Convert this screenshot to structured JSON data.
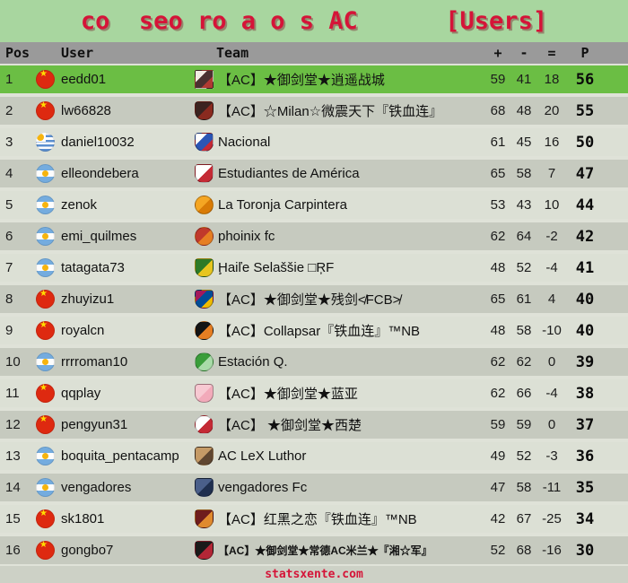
{
  "banner": {
    "title": "co  seo ro a o s AC      [Users]",
    "background": "#A8D69F",
    "title_color": "#D51438"
  },
  "columns": {
    "pos": "Pos",
    "user": "User",
    "team": "Team",
    "plus": "+",
    "minus": "-",
    "equal": "=",
    "points": "P"
  },
  "colors": {
    "header_row": "#9A9A9A",
    "row_light": "#DCE0D5",
    "row_dark": "#C6CABF",
    "row_highlight": "#6BBE44",
    "accent_red": "#D51438"
  },
  "rows": [
    {
      "pos": 1,
      "flag": "china",
      "user": "eedd01",
      "badge": {
        "name": "anime-girl-crest-icon",
        "shape": "square",
        "colors": [
          "#F2ECE3",
          "#4A3030",
          "#B03A32"
        ]
      },
      "team": "【AC】★御剑堂★逍遥战城",
      "plus": 59,
      "minus": 41,
      "equal": 18,
      "points": 56,
      "highlight": true
    },
    {
      "pos": 2,
      "flag": "china",
      "user": "lw66828",
      "badge": {
        "name": "milan-owl-crest-icon",
        "shape": "shield",
        "colors": [
          "#3B2320",
          "#8A2A1F"
        ]
      },
      "team": "【AC】☆Milan☆微震天下『铁血连』",
      "plus": 68,
      "minus": 48,
      "equal": 20,
      "points": 55
    },
    {
      "pos": 3,
      "flag": "uruguay",
      "user": "daniel10032",
      "badge": {
        "name": "nacional-crest-icon",
        "shape": "shield",
        "colors": [
          "#FFFFFF",
          "#2B55B4",
          "#C42A35"
        ]
      },
      "team": "Nacional",
      "plus": 61,
      "minus": 45,
      "equal": 16,
      "points": 50
    },
    {
      "pos": 4,
      "flag": "argentina",
      "user": "elleondebera",
      "badge": {
        "name": "estudiantes-crest-icon",
        "shape": "shield",
        "colors": [
          "#FFFFFF",
          "#C42A35"
        ]
      },
      "team": "Estudiantes de América",
      "plus": 65,
      "minus": 58,
      "equal": 7,
      "points": 47
    },
    {
      "pos": 5,
      "flag": "argentina",
      "user": "zenok",
      "badge": {
        "name": "orange-ball-crest-icon",
        "shape": "circle",
        "colors": [
          "#F5A623",
          "#D97B06"
        ]
      },
      "team": "La Toronja Carpintera",
      "plus": 53,
      "minus": 43,
      "equal": 10,
      "points": 44
    },
    {
      "pos": 6,
      "flag": "argentina",
      "user": "emi_quilmes",
      "badge": {
        "name": "phoenix-bird-crest-icon",
        "shape": "circle",
        "colors": [
          "#C0392B",
          "#E67E22"
        ]
      },
      "team": "phoinix fc",
      "plus": 62,
      "minus": 64,
      "equal": -2,
      "points": 42
    },
    {
      "pos": 7,
      "flag": "argentina",
      "user": "tatagata73",
      "badge": {
        "name": "green-yellow-crest-icon",
        "shape": "shield",
        "colors": [
          "#2D7A27",
          "#E7C51F"
        ]
      },
      "team": "Ḩaiľe Selaššie □ŖF",
      "plus": 48,
      "minus": 52,
      "equal": -4,
      "points": 41
    },
    {
      "pos": 8,
      "flag": "china",
      "user": "zhuyizu1",
      "badge": {
        "name": "fcb-crest-icon",
        "shape": "shield",
        "colors": [
          "#A3195B",
          "#004D98",
          "#EDBB00"
        ]
      },
      "team": "【AC】★御剑堂★残剑≮FCB≯",
      "plus": 65,
      "minus": 61,
      "equal": 4,
      "points": 40
    },
    {
      "pos": 9,
      "flag": "china",
      "user": "royalcn",
      "badge": {
        "name": "black-orange-orb-icon",
        "shape": "circle",
        "colors": [
          "#141414",
          "#E67E22"
        ]
      },
      "team": "【AC】Collapsar『铁血连』™NB",
      "plus": 48,
      "minus": 58,
      "equal": -10,
      "points": 40
    },
    {
      "pos": 10,
      "flag": "argentina",
      "user": "rrrroman10",
      "badge": {
        "name": "green-circle-crest-icon",
        "shape": "circle",
        "colors": [
          "#3A9D3A",
          "#A8DBA8"
        ]
      },
      "team": "Estación Q.",
      "plus": 62,
      "minus": 62,
      "equal": 0,
      "points": 39
    },
    {
      "pos": 11,
      "flag": "china",
      "user": "qqplay",
      "badge": {
        "name": "pink-shield-crest-icon",
        "shape": "shield",
        "colors": [
          "#F7C9D2",
          "#F2AABA"
        ]
      },
      "team": "【AC】★御剑堂★蓝亚",
      "plus": 62,
      "minus": 66,
      "equal": -4,
      "points": 38
    },
    {
      "pos": 12,
      "flag": "china",
      "user": "pengyun31",
      "badge": {
        "name": "milan-roundel-icon",
        "shape": "circle",
        "colors": [
          "#FFFFFF",
          "#C42A35"
        ]
      },
      "team": "【AC】 ★御剑堂★西楚",
      "plus": 59,
      "minus": 59,
      "equal": 0,
      "points": 37
    },
    {
      "pos": 13,
      "flag": "argentina",
      "user": "boquita_pentacamp",
      "badge": {
        "name": "tan-crest-icon",
        "shape": "shield",
        "colors": [
          "#C59A66",
          "#5F4630"
        ]
      },
      "team": "AC LeX Luthor",
      "plus": 49,
      "minus": 52,
      "equal": -3,
      "points": 36
    },
    {
      "pos": 14,
      "flag": "argentina",
      "user": "vengadores",
      "badge": {
        "name": "blue-winged-crest-icon",
        "shape": "shield",
        "colors": [
          "#4A5F8A",
          "#1F2F4F"
        ]
      },
      "team": "vengadores Fc",
      "plus": 47,
      "minus": 58,
      "equal": -11,
      "points": 35
    },
    {
      "pos": 15,
      "flag": "china",
      "user": "sk1801",
      "badge": {
        "name": "dark-red-crest-icon",
        "shape": "shield",
        "colors": [
          "#6F1D1D",
          "#E08A2E"
        ]
      },
      "team": "【AC】红黑之恋『铁血连』™NB",
      "plus": 42,
      "minus": 67,
      "equal": -25,
      "points": 34
    },
    {
      "pos": 16,
      "flag": "china",
      "user": "gongbo7",
      "badge": {
        "name": "black-red-crest-icon",
        "shape": "shield",
        "colors": [
          "#1A1A1A",
          "#B32636"
        ]
      },
      "team": "【AC】★御剑堂★常德AC米兰★『湘☆军』",
      "plus": 52,
      "minus": 68,
      "equal": -16,
      "points": 30,
      "team_small": true
    }
  ],
  "footer": {
    "brand": "statsxente.com"
  }
}
